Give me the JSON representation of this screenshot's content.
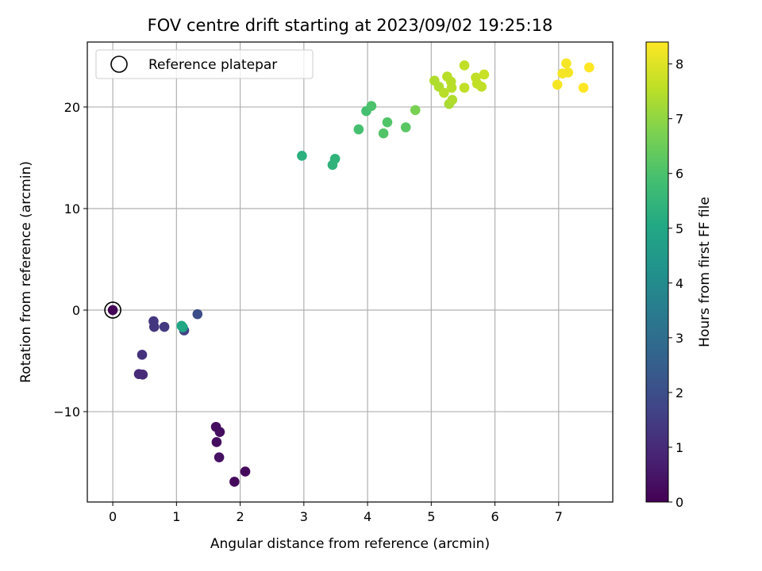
{
  "chart_data": {
    "type": "scatter",
    "title": "FOV centre drift starting at 2023/09/02 19:25:18",
    "xlabel": "Angular distance from reference (arcmin)",
    "ylabel": "Rotation from reference (arcmin)",
    "xlim": [
      -0.4,
      7.85
    ],
    "ylim": [
      -18.9,
      26.4
    ],
    "xticks": [
      0,
      1,
      2,
      3,
      4,
      5,
      6,
      7
    ],
    "yticks": [
      -10,
      0,
      10,
      20
    ],
    "grid": true,
    "legend": {
      "placement": "top-left",
      "entries": [
        "Reference platepar"
      ]
    },
    "reference_point": {
      "x": 0,
      "y": 0
    },
    "colorbar": {
      "label": "Hours from first FF file",
      "range": [
        0,
        8.4
      ],
      "ticks": [
        0,
        1,
        2,
        3,
        4,
        5,
        6,
        7,
        8
      ],
      "colormap": "viridis"
    },
    "points": [
      {
        "x": 0.0,
        "y": 0.0,
        "c": 0.1
      },
      {
        "x": 1.62,
        "y": -11.5,
        "c": 0.3
      },
      {
        "x": 1.68,
        "y": -12.0,
        "c": 0.3
      },
      {
        "x": 1.63,
        "y": -13.0,
        "c": 0.3
      },
      {
        "x": 1.67,
        "y": -14.5,
        "c": 0.4
      },
      {
        "x": 2.08,
        "y": -15.9,
        "c": 0.2
      },
      {
        "x": 1.91,
        "y": -16.9,
        "c": 0.2
      },
      {
        "x": 0.41,
        "y": -6.3,
        "c": 1.0
      },
      {
        "x": 0.47,
        "y": -6.35,
        "c": 1.0
      },
      {
        "x": 0.46,
        "y": -4.4,
        "c": 1.2
      },
      {
        "x": 0.64,
        "y": -1.1,
        "c": 1.3
      },
      {
        "x": 0.65,
        "y": -1.65,
        "c": 1.3
      },
      {
        "x": 0.81,
        "y": -1.65,
        "c": 1.4
      },
      {
        "x": 1.12,
        "y": -2.0,
        "c": 1.6
      },
      {
        "x": 1.33,
        "y": -0.4,
        "c": 2.0
      },
      {
        "x": 1.1,
        "y": -1.7,
        "c": 4.8
      },
      {
        "x": 1.08,
        "y": -1.55,
        "c": 5.0
      },
      {
        "x": 2.97,
        "y": 15.2,
        "c": 5.3
      },
      {
        "x": 3.45,
        "y": 14.3,
        "c": 5.4
      },
      {
        "x": 3.49,
        "y": 14.9,
        "c": 5.4
      },
      {
        "x": 3.86,
        "y": 17.8,
        "c": 5.9
      },
      {
        "x": 3.98,
        "y": 19.6,
        "c": 5.9
      },
      {
        "x": 4.06,
        "y": 20.1,
        "c": 6.0
      },
      {
        "x": 4.25,
        "y": 17.4,
        "c": 6.1
      },
      {
        "x": 4.31,
        "y": 18.5,
        "c": 6.1
      },
      {
        "x": 4.6,
        "y": 18.0,
        "c": 6.2
      },
      {
        "x": 4.75,
        "y": 19.7,
        "c": 6.7
      },
      {
        "x": 5.05,
        "y": 22.6,
        "c": 7.4
      },
      {
        "x": 5.12,
        "y": 22.0,
        "c": 7.4
      },
      {
        "x": 5.2,
        "y": 21.4,
        "c": 7.5
      },
      {
        "x": 5.25,
        "y": 23.0,
        "c": 7.5
      },
      {
        "x": 5.28,
        "y": 20.3,
        "c": 7.3
      },
      {
        "x": 5.31,
        "y": 22.5,
        "c": 7.5
      },
      {
        "x": 5.32,
        "y": 21.9,
        "c": 7.5
      },
      {
        "x": 5.33,
        "y": 20.7,
        "c": 7.4
      },
      {
        "x": 5.52,
        "y": 24.1,
        "c": 7.6
      },
      {
        "x": 5.52,
        "y": 21.9,
        "c": 7.6
      },
      {
        "x": 5.7,
        "y": 22.9,
        "c": 7.6
      },
      {
        "x": 5.72,
        "y": 22.3,
        "c": 7.6
      },
      {
        "x": 5.79,
        "y": 22.0,
        "c": 7.6
      },
      {
        "x": 5.83,
        "y": 23.2,
        "c": 7.7
      },
      {
        "x": 6.98,
        "y": 22.2,
        "c": 8.3
      },
      {
        "x": 7.06,
        "y": 23.3,
        "c": 8.3
      },
      {
        "x": 7.12,
        "y": 24.3,
        "c": 8.3
      },
      {
        "x": 7.15,
        "y": 23.4,
        "c": 8.3
      },
      {
        "x": 7.39,
        "y": 21.9,
        "c": 8.4
      },
      {
        "x": 7.48,
        "y": 23.9,
        "c": 8.4
      }
    ]
  }
}
